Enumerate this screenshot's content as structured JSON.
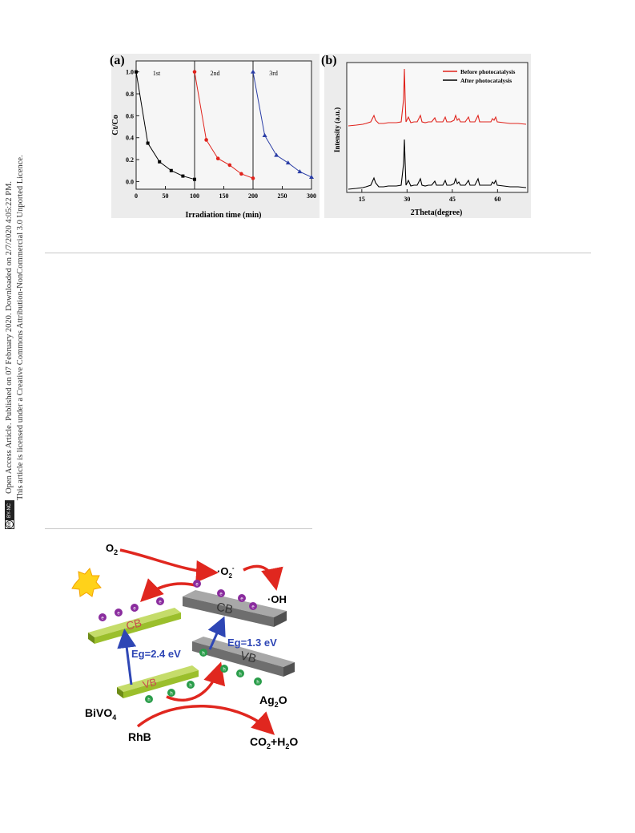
{
  "sidebar": {
    "line1": "Open Access Article. Published on 07 February 2020. Downloaded on 2/7/2020 4:05:22 PM.",
    "line2": "This article is licensed under a Creative Commons Attribution-NonCommercial 3.0 Unported Licence.",
    "cc_badge": "BY-NC",
    "cc_symbol": "cc"
  },
  "figure_top": {
    "chart_data": [
      {
        "panel_label": "(a)",
        "type": "line",
        "xlabel": "Irradiation time (min)",
        "ylabel": "Ct/Co",
        "xlim": [
          0,
          300
        ],
        "ylim": [
          -0.07,
          1.1
        ],
        "xticks": [
          0,
          50,
          100,
          150,
          200,
          250,
          300
        ],
        "yticks": [
          0.0,
          0.2,
          0.4,
          0.6,
          0.8,
          1.0
        ],
        "ytick_labels": [
          "0.0",
          "0.2",
          "0.4",
          "0.6",
          "0.8",
          "1.0"
        ],
        "cycle_dividers": [
          100,
          200
        ],
        "series": [
          {
            "name": "1st",
            "color": "#000000",
            "marker": "square",
            "x": [
              0,
              20,
              40,
              60,
              80,
              100
            ],
            "y": [
              1.0,
              0.35,
              0.18,
              0.1,
              0.05,
              0.02
            ]
          },
          {
            "name": "2nd",
            "color": "#e0231c",
            "marker": "circle",
            "x": [
              100,
              120,
              140,
              160,
              180,
              200
            ],
            "y": [
              1.0,
              0.38,
              0.21,
              0.15,
              0.07,
              0.03
            ]
          },
          {
            "name": "3rd",
            "color": "#2b3ea6",
            "marker": "triangle",
            "x": [
              200,
              220,
              240,
              260,
              280,
              300
            ],
            "y": [
              1.0,
              0.42,
              0.24,
              0.17,
              0.09,
              0.04
            ]
          }
        ]
      },
      {
        "panel_label": "(b)",
        "type": "line",
        "xlabel": "2Theta(degree)",
        "ylabel": "Intensity (a.u.)",
        "xlim": [
          10,
          70
        ],
        "xticks": [
          15,
          30,
          45,
          60
        ],
        "legend_position": "top-right",
        "series": [
          {
            "name": "Before photocatalysis",
            "color": "#e0231c"
          },
          {
            "name": "After photocatalysis",
            "color": "#000000"
          }
        ],
        "peaks_2theta": [
          18.9,
          28.9,
          30.5,
          34.5,
          35.2,
          39.8,
          42.5,
          46.8,
          47.3,
          50.3,
          53.3,
          58.5,
          59.3
        ]
      }
    ]
  },
  "figure_bottom": {
    "labels": {
      "o2": "O",
      "o2_sub": "2",
      "superoxide": "·O",
      "superoxide_sub": "2",
      "superoxide_sup": "-",
      "hydroxyl": "·OH",
      "cb_left": "CB",
      "vb_left": "VB",
      "cb_right": "CB",
      "vb_right": "VB",
      "eg_left": "Eg=2.4 eV",
      "eg_right": "Eg=1.3 eV",
      "bivo4": "BiVO",
      "bivo4_sub": "4",
      "ag2o_a": "Ag",
      "ag2o_sub": "2",
      "ag2o_b": "O",
      "rhb": "RhB",
      "co2": "CO",
      "co2_sub": "2",
      "plus_h2o": "+H",
      "h2o_sub": "2",
      "h2o_o": "O",
      "electron": "e",
      "hole": "h"
    },
    "colors": {
      "arrow_red": "#e0271f",
      "arrow_blue": "#2e46b5",
      "bar_green": "#9bbf2c",
      "bar_gray": "#7a7a7a",
      "electron_purple": "#8a2c9e",
      "hole_green": "#2a9d4a",
      "sun_yellow": "#ffd21a"
    }
  }
}
